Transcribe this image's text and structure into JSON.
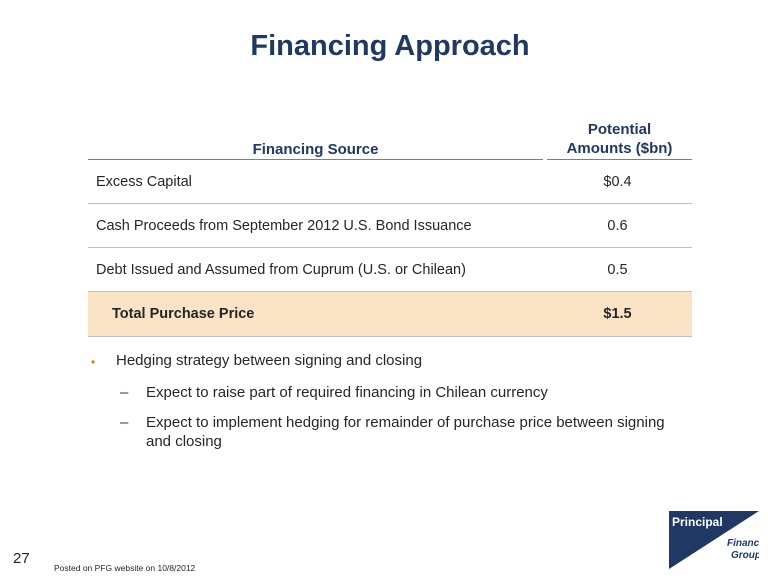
{
  "slide": {
    "title": "Financing Approach",
    "page_number": "27",
    "footer_note": "Posted on PFG website on 10/8/2012"
  },
  "table": {
    "header_source": "Financing Source",
    "header_amount_line1": "Potential",
    "header_amount_line2": "Amounts ($bn)",
    "rows": [
      {
        "source": "Excess Capital",
        "amount": "$0.4"
      },
      {
        "source": "Cash Proceeds from September 2012 U.S. Bond Issuance",
        "amount": "0.6"
      },
      {
        "source": "Debt Issued and Assumed from Cuprum (U.S. or Chilean)",
        "amount": "0.5"
      }
    ],
    "total": {
      "source": "Total Purchase Price",
      "amount": "$1.5"
    }
  },
  "bullets": {
    "main": "Hedging strategy between signing and closing",
    "sub": [
      "Expect to raise part of required financing in Chilean currency",
      "Expect to implement hedging for remainder of purchase price between signing and closing"
    ]
  },
  "logo": {
    "line1": "Principal",
    "line2": "Financial",
    "line3": "Group",
    "color": "#1f3864"
  }
}
